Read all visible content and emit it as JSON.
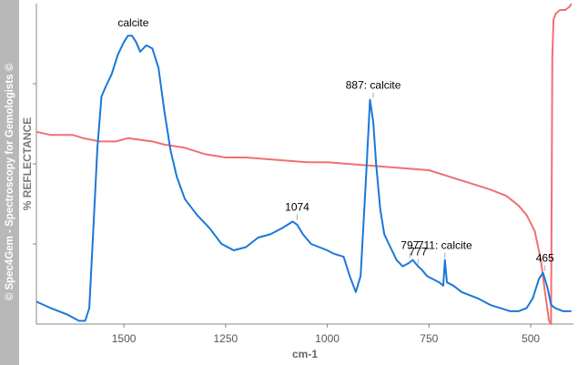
{
  "watermark": "© Spec4Gem - Spectroscopy for Gemologists ©",
  "colors": {
    "blue_series": "#1a78d8",
    "red_series": "#f07070",
    "axis": "#888888",
    "leader": "#aaaaaa",
    "watermark_bg": "#b8b8b8"
  },
  "chart_data": {
    "type": "line",
    "title": "",
    "xlabel": "cm-1",
    "ylabel": "% REFLECTANCE",
    "xlim": [
      1715,
      395
    ],
    "ylim": [
      0,
      100
    ],
    "x_ticks": [
      1500,
      1250,
      1000,
      750,
      500
    ],
    "x_tick_labels": [
      "1500",
      "1250",
      "1000",
      "750",
      "500"
    ],
    "y_ticks": [
      25,
      50,
      75
    ],
    "y_tick_labels": [],
    "grid": false,
    "legend": "none",
    "series": [
      {
        "color": "#1a78d8",
        "points": [
          [
            1715,
            7
          ],
          [
            1680,
            5
          ],
          [
            1640,
            3
          ],
          [
            1610,
            1
          ],
          [
            1595,
            1
          ],
          [
            1585,
            5
          ],
          [
            1575,
            30
          ],
          [
            1565,
            55
          ],
          [
            1555,
            71
          ],
          [
            1545,
            74
          ],
          [
            1530,
            78
          ],
          [
            1515,
            84
          ],
          [
            1500,
            88
          ],
          [
            1490,
            90
          ],
          [
            1480,
            90
          ],
          [
            1470,
            88
          ],
          [
            1460,
            85
          ],
          [
            1445,
            87
          ],
          [
            1430,
            86
          ],
          [
            1415,
            80
          ],
          [
            1400,
            66
          ],
          [
            1385,
            54
          ],
          [
            1370,
            46
          ],
          [
            1350,
            39
          ],
          [
            1320,
            34
          ],
          [
            1290,
            30
          ],
          [
            1260,
            25
          ],
          [
            1230,
            23
          ],
          [
            1200,
            24
          ],
          [
            1170,
            27
          ],
          [
            1140,
            28
          ],
          [
            1110,
            30
          ],
          [
            1085,
            32
          ],
          [
            1074,
            31
          ],
          [
            1060,
            28
          ],
          [
            1040,
            25
          ],
          [
            1020,
            24
          ],
          [
            1000,
            23
          ],
          [
            985,
            22
          ],
          [
            960,
            21
          ],
          [
            945,
            15
          ],
          [
            930,
            10
          ],
          [
            918,
            15
          ],
          [
            905,
            45
          ],
          [
            895,
            70
          ],
          [
            887,
            63
          ],
          [
            880,
            50
          ],
          [
            870,
            36
          ],
          [
            860,
            28
          ],
          [
            845,
            24
          ],
          [
            830,
            20
          ],
          [
            815,
            18
          ],
          [
            800,
            19
          ],
          [
            790,
            20
          ],
          [
            777,
            18
          ],
          [
            768,
            17
          ],
          [
            755,
            15
          ],
          [
            740,
            14
          ],
          [
            725,
            13
          ],
          [
            715,
            12
          ],
          [
            711,
            20
          ],
          [
            706,
            13
          ],
          [
            690,
            12
          ],
          [
            670,
            10
          ],
          [
            650,
            9
          ],
          [
            630,
            8
          ],
          [
            600,
            6
          ],
          [
            575,
            5
          ],
          [
            550,
            4
          ],
          [
            530,
            4
          ],
          [
            510,
            5
          ],
          [
            495,
            8
          ],
          [
            480,
            14
          ],
          [
            470,
            16
          ],
          [
            465,
            14
          ],
          [
            458,
            11
          ],
          [
            450,
            6
          ],
          [
            440,
            5
          ],
          [
            420,
            4
          ],
          [
            400,
            4
          ]
        ]
      },
      {
        "color": "#f07070",
        "points": [
          [
            1715,
            60
          ],
          [
            1680,
            59
          ],
          [
            1650,
            59
          ],
          [
            1625,
            59
          ],
          [
            1600,
            58
          ],
          [
            1560,
            57
          ],
          [
            1520,
            57
          ],
          [
            1490,
            58
          ],
          [
            1460,
            57.5
          ],
          [
            1430,
            57
          ],
          [
            1400,
            56
          ],
          [
            1350,
            55
          ],
          [
            1300,
            53
          ],
          [
            1250,
            52
          ],
          [
            1200,
            52
          ],
          [
            1150,
            51.5
          ],
          [
            1100,
            51
          ],
          [
            1050,
            50.5
          ],
          [
            1000,
            50.5
          ],
          [
            950,
            50
          ],
          [
            900,
            49.5
          ],
          [
            850,
            49
          ],
          [
            800,
            48.5
          ],
          [
            750,
            48
          ],
          [
            700,
            46
          ],
          [
            650,
            44
          ],
          [
            600,
            42
          ],
          [
            560,
            40
          ],
          [
            530,
            37
          ],
          [
            510,
            34
          ],
          [
            490,
            29
          ],
          [
            475,
            20
          ],
          [
            465,
            10
          ],
          [
            455,
            1
          ],
          [
            450,
            0
          ],
          [
            447,
            83
          ],
          [
            444,
            95
          ],
          [
            438,
            97
          ],
          [
            428,
            98
          ],
          [
            415,
            98
          ],
          [
            405,
            99
          ],
          [
            400,
            100
          ]
        ]
      }
    ],
    "annotations": [
      {
        "text": "calcite",
        "x": 1477,
        "y": 90,
        "leader": false
      },
      {
        "text": "887: calcite",
        "x": 887,
        "y": 70,
        "leader": true
      },
      {
        "text": "1074",
        "x": 1074,
        "y": 32,
        "leader": true
      },
      {
        "text": "797",
        "x": 797,
        "y": 20,
        "leader": true
      },
      {
        "text": "777",
        "x": 777,
        "y": 18,
        "leader": true
      },
      {
        "text": "711: calcite",
        "x": 711,
        "y": 20,
        "leader": true
      },
      {
        "text": "465",
        "x": 465,
        "y": 16,
        "leader": true
      }
    ]
  }
}
